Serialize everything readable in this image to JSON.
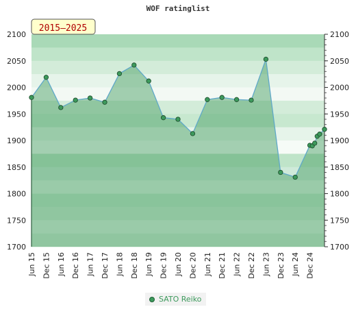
{
  "chart_data": {
    "type": "area",
    "title": "WOF ratinglist",
    "badge": "2015–2025",
    "ylim": [
      1700,
      2100
    ],
    "yticks": [
      1700,
      1750,
      1800,
      1850,
      1900,
      1950,
      2000,
      2050,
      2100
    ],
    "xlim": [
      "2015-06",
      "2025-06"
    ],
    "x_tick_labels": [
      "Jun 15",
      "Dec 15",
      "Jun 16",
      "Dec 16",
      "Jun 17",
      "Dec 17",
      "Jun 18",
      "Dec 18",
      "Jun 19",
      "Dec 19",
      "Jun 20",
      "Dec 20",
      "Jun 21",
      "Dec 21",
      "Jun 22",
      "Dec 22",
      "Jun 23",
      "Dec 23",
      "Jun 24",
      "Dec 24"
    ],
    "series": [
      {
        "name": "SATO Reiko",
        "color": "#3d9a5c",
        "points": [
          {
            "x": "2015-06",
            "y": 1981
          },
          {
            "x": "2015-12",
            "y": 2019
          },
          {
            "x": "2016-06",
            "y": 1962
          },
          {
            "x": "2016-12",
            "y": 1976
          },
          {
            "x": "2017-06",
            "y": 1980
          },
          {
            "x": "2017-12",
            "y": 1972
          },
          {
            "x": "2018-06",
            "y": 2026
          },
          {
            "x": "2018-12",
            "y": 2042
          },
          {
            "x": "2019-06",
            "y": 2012
          },
          {
            "x": "2019-12",
            "y": 1943
          },
          {
            "x": "2020-06",
            "y": 1940
          },
          {
            "x": "2020-12",
            "y": 1913
          },
          {
            "x": "2021-06",
            "y": 1977
          },
          {
            "x": "2021-12",
            "y": 1981
          },
          {
            "x": "2022-06",
            "y": 1977
          },
          {
            "x": "2022-12",
            "y": 1976
          },
          {
            "x": "2023-06",
            "y": 2053
          },
          {
            "x": "2023-12",
            "y": 1840
          },
          {
            "x": "2024-06",
            "y": 1831
          },
          {
            "x": "2024-12",
            "y": 1891
          },
          {
            "x": "2025-01",
            "y": 1890
          },
          {
            "x": "2025-02",
            "y": 1895
          },
          {
            "x": "2025-03",
            "y": 1908
          },
          {
            "x": "2025-04",
            "y": 1912
          },
          {
            "x": "2025-06",
            "y": 1921
          }
        ]
      }
    ],
    "grid": true,
    "legend_position": "bottom"
  }
}
